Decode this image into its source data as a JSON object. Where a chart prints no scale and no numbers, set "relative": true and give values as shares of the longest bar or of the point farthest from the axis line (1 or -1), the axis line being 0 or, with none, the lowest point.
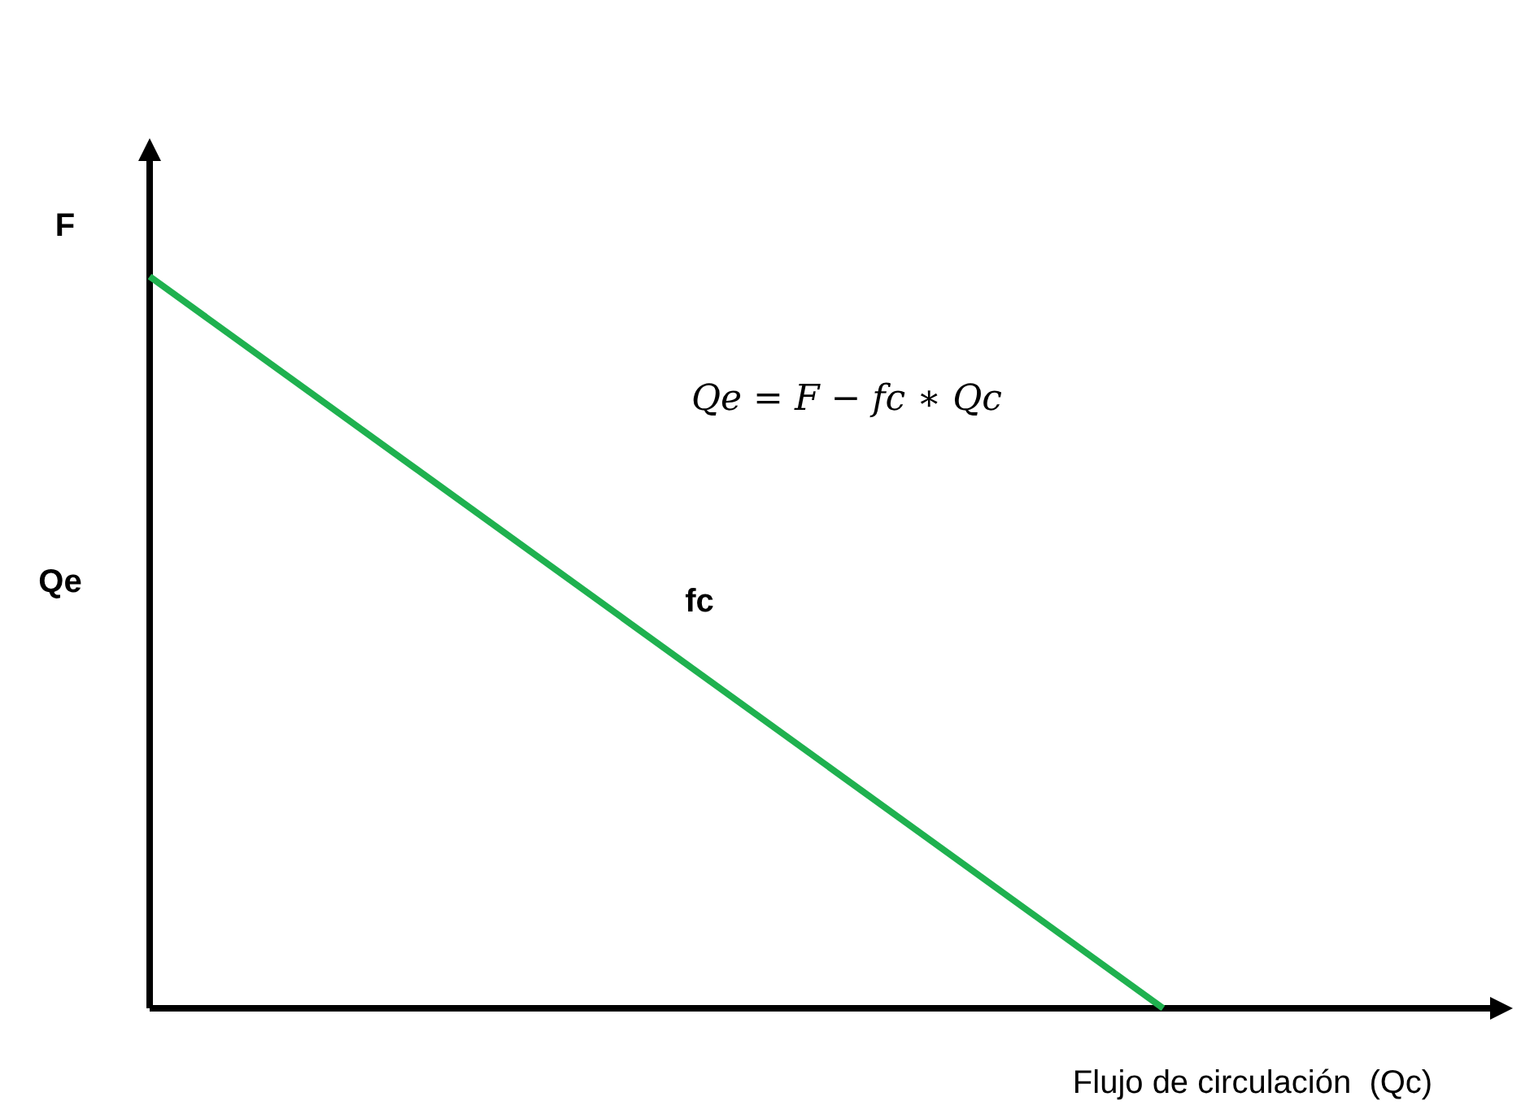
{
  "chart_data": {
    "type": "line",
    "relative": true,
    "categories": [
      null,
      null
    ],
    "series": [
      {
        "color": "#1fb14f",
        "values": [
          1,
          0
        ]
      }
    ],
    "ylabel": "Qe",
    "xlabel": "Flujo de circulación  (Qc)",
    "annotations": [
      "F",
      "fc",
      "Qe = F − fc ∗ Qc"
    ],
    "marker": "none",
    "line_style": "solid"
  }
}
